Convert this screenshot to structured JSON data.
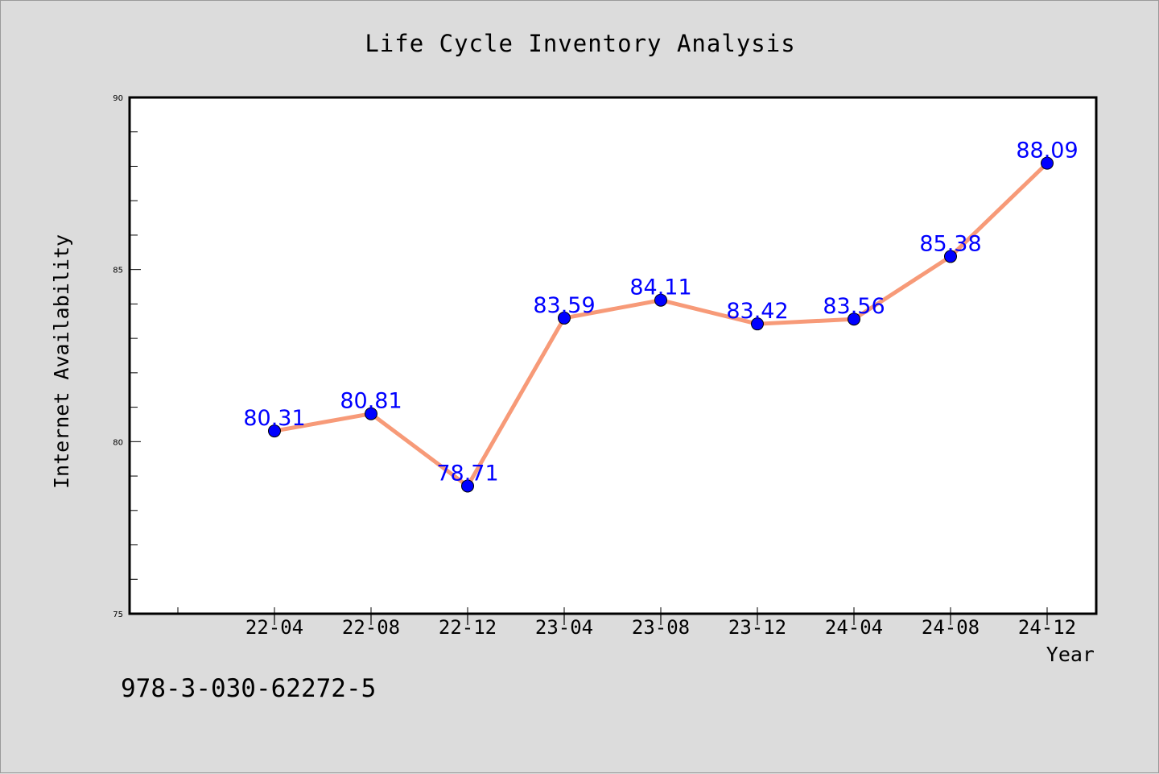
{
  "chart_data": {
    "type": "line",
    "title": "Life Cycle Inventory Analysis",
    "xlabel": "Year",
    "ylabel": "Internet Availability",
    "categories": [
      "22-04",
      "22-08",
      "22-12",
      "23-04",
      "23-08",
      "23-12",
      "24-04",
      "24-08",
      "24-12"
    ],
    "series": [
      {
        "values": [
          80.31,
          80.81,
          78.71,
          83.59,
          84.11,
          83.42,
          83.56,
          85.38,
          88.09
        ],
        "labels": [
          "80.31",
          "80.81",
          "78.71",
          "83.59",
          "84.11",
          "83.42",
          "83.56",
          "85.38",
          "88.09"
        ],
        "line_color": "#f79a78",
        "marker_color": "#0000ff"
      }
    ],
    "ylim": [
      75,
      90
    ],
    "yticks": [
      "75",
      "80",
      "85",
      "90"
    ],
    "grid": false,
    "legend": "none"
  },
  "footer": {
    "isbn": "978-3-030-62272-5"
  },
  "colors": {
    "background": "#dcdcdc",
    "plot_background": "#ffffff",
    "line": "#f79a78",
    "markers": "#0000ff",
    "data_labels": "#0000ff"
  }
}
